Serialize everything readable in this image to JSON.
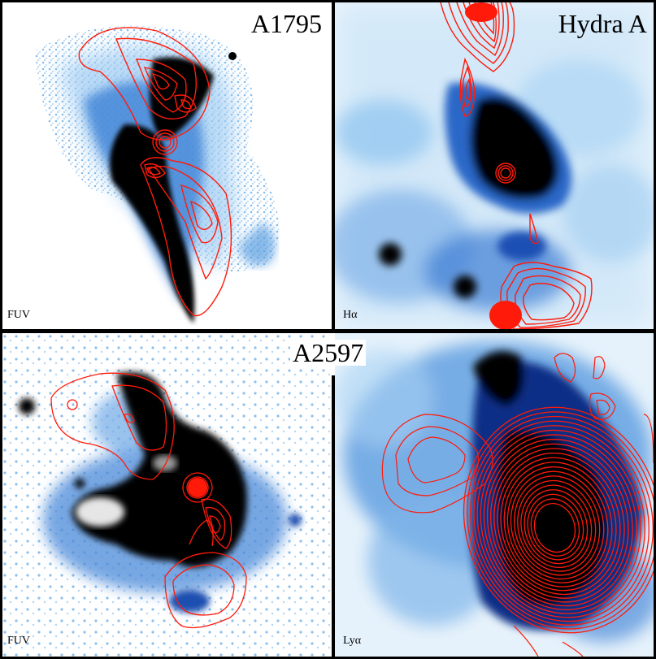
{
  "panels": {
    "a1795": {
      "title": "A1795",
      "band": "FUV"
    },
    "hydra": {
      "title": "Hydra A",
      "band": "Hα"
    },
    "a2597_fuv": {
      "band": "FUV"
    },
    "a2597_lya": {
      "band": "Lyα"
    }
  },
  "row2_title": "A2597",
  "colors": {
    "contour": "#ff1a0a",
    "emission_dark": "#000000",
    "emission_mid": "#1f5fc8",
    "emission_light": "#8ec4f0",
    "background": "#ffffff"
  }
}
